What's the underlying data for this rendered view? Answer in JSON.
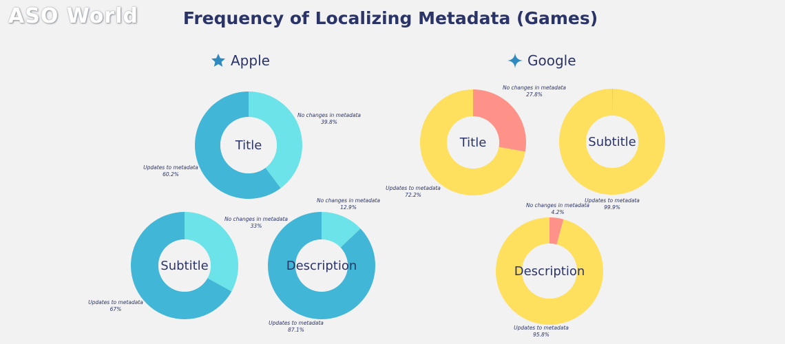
{
  "logo": {
    "text": "ASO World"
  },
  "title": "Frequency of Localizing Metadata (Games)",
  "stores": [
    {
      "name": "Apple",
      "icon": "star-icon",
      "color": "#2f8bbf"
    },
    {
      "name": "Google",
      "icon": "sparkle-icon",
      "color": "#2f8bbf"
    }
  ],
  "colors": {
    "apple_updates": "#42b6d6",
    "apple_nochange": "#6ce3e8",
    "google_updates": "#ffdf5e",
    "google_nochange": "#fe9188"
  },
  "chart_data": [
    {
      "type": "pie",
      "store": "Apple",
      "label": "Title",
      "slices": [
        {
          "name": "No changes in metadata",
          "value": 39.8,
          "pct_text": "39.8%"
        },
        {
          "name": "Updates to metadata",
          "value": 60.2,
          "pct_text": "60.2%"
        }
      ]
    },
    {
      "type": "pie",
      "store": "Apple",
      "label": "Subtitle",
      "slices": [
        {
          "name": "No changes in metadata",
          "value": 33,
          "pct_text": "33%"
        },
        {
          "name": "Updates to metadata",
          "value": 67,
          "pct_text": "67%"
        }
      ]
    },
    {
      "type": "pie",
      "store": "Apple",
      "label": "Description",
      "slices": [
        {
          "name": "No changes in metadata",
          "value": 12.9,
          "pct_text": "12.9%"
        },
        {
          "name": "Updates to metadata",
          "value": 87.1,
          "pct_text": "87.1%"
        }
      ]
    },
    {
      "type": "pie",
      "store": "Google",
      "label": "Title",
      "slices": [
        {
          "name": "No changes in metadata",
          "value": 27.8,
          "pct_text": "27.8%"
        },
        {
          "name": "Updates to metadata",
          "value": 72.2,
          "pct_text": "72.2%"
        }
      ]
    },
    {
      "type": "pie",
      "store": "Google",
      "label": "Subtitle",
      "slices": [
        {
          "name": "No changes in metadata",
          "value": 0.1,
          "pct_text": ""
        },
        {
          "name": "Updates to metadata",
          "value": 99.9,
          "pct_text": "99.9%"
        }
      ]
    },
    {
      "type": "pie",
      "store": "Google",
      "label": "Description",
      "slices": [
        {
          "name": "No changes in metadata",
          "value": 4.2,
          "pct_text": "4.2%"
        },
        {
          "name": "Updates to metadata",
          "value": 95.8,
          "pct_text": "95.8%"
        }
      ]
    }
  ]
}
